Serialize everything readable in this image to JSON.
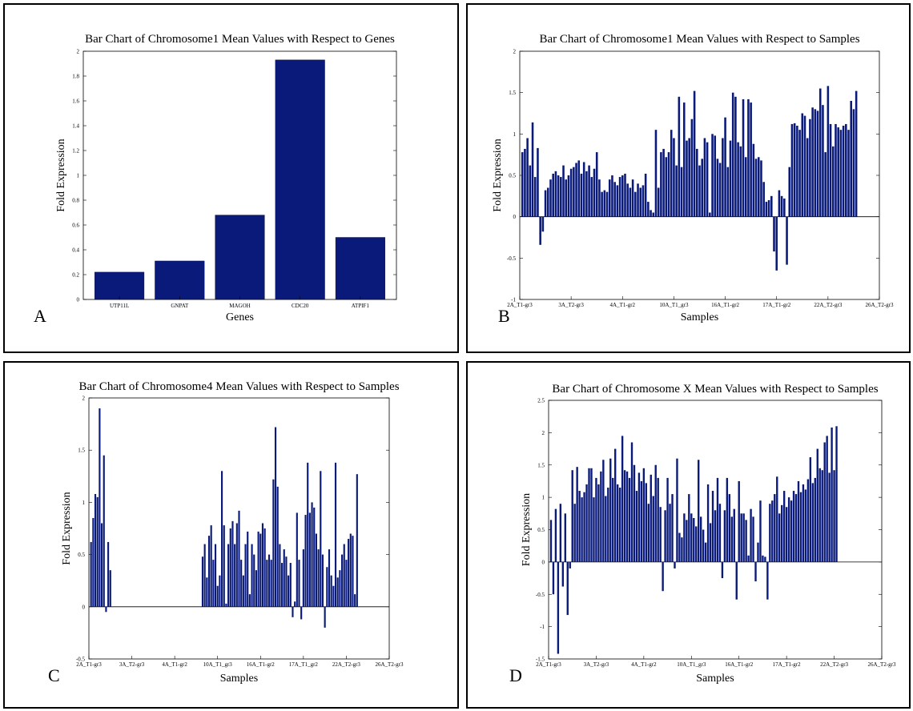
{
  "chart_data": [
    {
      "type": "bar",
      "panel_label": "A",
      "title": "Bar Chart of Chromosome1 Mean Values with Respect to Genes",
      "xlabel": "Genes",
      "ylabel": "Fold Expression",
      "ylim": [
        0,
        2
      ],
      "yticks": [
        "0",
        "0.2",
        "0.4",
        "0.6",
        "0.8",
        "1",
        "1.2",
        "1.4",
        "1.6",
        "1.8",
        "2"
      ],
      "categories": [
        "UTP11L",
        "GNPAT",
        "MAGOH",
        "CDC20",
        "ATPIF1"
      ],
      "values": [
        0.22,
        0.31,
        0.68,
        1.93,
        0.5
      ],
      "color": "#0a1a7a"
    },
    {
      "type": "bar",
      "panel_label": "B",
      "title": "Bar Chart of Chromosome1 Mean Values with Respect to Samples",
      "xlabel": "Samples",
      "ylabel": "Fold Expression",
      "ylim": [
        -1,
        2
      ],
      "yticks": [
        "-1",
        "-0.5",
        "0",
        "0.5",
        "1",
        "1.5",
        "2"
      ],
      "xticks": [
        "2A_T1-gr3",
        "3A_T2-gr3",
        "4A_T1-gr2",
        "10A_T1_gr3",
        "16A_T1-gr2",
        "17A_T1-gr2",
        "22A_T2-gr3",
        "26A_T2-gr3"
      ],
      "values": [
        0.78,
        0.82,
        0.95,
        0.62,
        1.14,
        0.48,
        0.83,
        -0.34,
        -0.18,
        0.32,
        0.35,
        0.45,
        0.52,
        0.55,
        0.5,
        0.48,
        0.62,
        0.45,
        0.5,
        0.58,
        0.6,
        0.65,
        0.68,
        0.52,
        0.66,
        0.55,
        0.62,
        0.48,
        0.58,
        0.78,
        0.45,
        0.3,
        0.32,
        0.3,
        0.45,
        0.5,
        0.42,
        0.38,
        0.48,
        0.5,
        0.52,
        0.4,
        0.35,
        0.45,
        0.3,
        0.4,
        0.35,
        0.38,
        0.52,
        0.18,
        0.08,
        0.05,
        1.05,
        0.35,
        0.78,
        0.82,
        0.72,
        0.78,
        1.05,
        0.95,
        0.62,
        1.45,
        0.6,
        1.38,
        0.92,
        0.95,
        1.18,
        1.52,
        0.82,
        0.62,
        0.7,
        0.95,
        0.9,
        0.05,
        1.0,
        0.98,
        0.7,
        0.65,
        0.95,
        1.2,
        0.6,
        0.92,
        1.5,
        1.45,
        0.9,
        0.85,
        1.42,
        0.72,
        1.42,
        1.38,
        0.88,
        0.7,
        0.72,
        0.68,
        0.42,
        0.18,
        0.2,
        0.25,
        -0.42,
        -0.65,
        0.32,
        0.25,
        0.22,
        -0.58,
        0.6,
        1.12,
        1.13,
        1.1,
        1.05,
        1.25,
        1.22,
        0.95,
        1.18,
        1.32,
        1.3,
        1.28,
        1.55,
        1.35,
        0.78,
        1.58,
        1.12,
        0.85,
        1.12,
        1.08,
        1.05,
        1.1,
        1.12,
        1.05,
        1.4,
        1.3,
        1.52
      ]
    },
    {
      "type": "bar",
      "panel_label": "C",
      "title": "Bar Chart of Chromosome4 Mean Values with Respect to Samples",
      "xlabel": "Samples",
      "ylabel": "Fold Expression",
      "ylim": [
        -0.5,
        2
      ],
      "yticks": [
        "-0.5",
        "0",
        "0.5",
        "1",
        "1.5",
        "2"
      ],
      "xticks": [
        "2A_T1-gr3",
        "3A_T2-gr3",
        "4A_T1-gr2",
        "10A_T1_gr3",
        "16A_T1-gr2",
        "17A_T1_gr2",
        "22A_T2-gr3",
        "26A_T2-gr3"
      ],
      "values": [
        0.62,
        0.85,
        1.08,
        1.05,
        1.9,
        0.8,
        1.45,
        -0.05,
        0.62,
        0.35,
        0,
        0,
        0,
        0,
        0,
        0,
        0,
        0,
        0,
        0,
        0,
        0,
        0,
        0,
        0,
        0,
        0,
        0,
        0,
        0,
        0,
        0,
        0,
        0,
        0,
        0,
        0,
        0,
        0,
        0,
        0,
        0,
        0,
        0,
        0,
        0,
        0,
        0,
        0,
        0,
        0,
        0,
        0.48,
        0.6,
        0.28,
        0.68,
        0.78,
        0.45,
        0.6,
        0.2,
        0.3,
        1.3,
        0.78,
        0.03,
        0.6,
        0.75,
        0.82,
        0.6,
        0.8,
        0.92,
        0.45,
        0.3,
        0.6,
        0.72,
        0.12,
        0.6,
        0.5,
        0.35,
        0.72,
        0.7,
        0.8,
        0.75,
        0.45,
        0.5,
        0.45,
        1.22,
        1.72,
        1.15,
        0.6,
        0.42,
        0.55,
        0.48,
        0.3,
        0.42,
        -0.1,
        0.05,
        0.9,
        0.45,
        -0.12,
        0.55,
        0.88,
        1.38,
        0.9,
        1.0,
        0.95,
        0.7,
        0.55,
        1.3,
        0.5,
        -0.2,
        0.38,
        0.55,
        0.3,
        0.2,
        1.38,
        0.28,
        0.35,
        0.5,
        0.6,
        0.45,
        0.65,
        0.7,
        0.68,
        0.12,
        1.27
      ]
    },
    {
      "type": "bar",
      "panel_label": "D",
      "title": "Bar Chart of Chromosome X Mean Values with Respect to Samples",
      "xlabel": "Samples",
      "ylabel": "Fold Expression",
      "ylim": [
        -1.5,
        2.5
      ],
      "yticks": [
        "-1.5",
        "-1",
        "-0.5",
        "0",
        "0.5",
        "1",
        "1.5",
        "2",
        "2.5"
      ],
      "xticks": [
        "2A_T1-gr3",
        "3A_T2-gr3",
        "4A_T1-gr2",
        "10A_T1_gr3",
        "16A_T1-gr2",
        "17A_T1-gr2",
        "22A_T2-gr3",
        "26A_T2-gr3"
      ],
      "values": [
        0.65,
        -0.5,
        0.82,
        -1.42,
        0.9,
        -0.38,
        0.75,
        -0.82,
        -0.1,
        1.42,
        0.9,
        1.47,
        1.1,
        1.0,
        1.08,
        1.2,
        1.45,
        1.45,
        1.0,
        1.3,
        1.2,
        1.4,
        1.58,
        1.02,
        1.15,
        1.6,
        1.3,
        1.75,
        1.2,
        1.15,
        1.95,
        1.42,
        1.4,
        1.3,
        1.85,
        1.5,
        1.1,
        1.38,
        1.25,
        1.45,
        1.22,
        0.9,
        1.35,
        1.02,
        1.5,
        1.3,
        0.85,
        -0.45,
        0.8,
        1.3,
        0.9,
        1.05,
        -0.1,
        1.6,
        0.45,
        0.38,
        0.75,
        0.65,
        1.05,
        0.75,
        0.68,
        0.55,
        1.58,
        0.7,
        0.5,
        0.3,
        1.2,
        0.6,
        1.1,
        0.8,
        1.3,
        0.9,
        -0.25,
        0.8,
        1.3,
        1.05,
        0.7,
        0.82,
        -0.58,
        1.25,
        0.75,
        0.75,
        0.65,
        0.1,
        0.82,
        0.7,
        -0.3,
        0.3,
        0.95,
        0.1,
        0.08,
        -0.58,
        0.9,
        0.95,
        1.05,
        1.32,
        0.75,
        0.88,
        1.1,
        0.85,
        1.0,
        0.95,
        1.1,
        1.05,
        1.25,
        1.08,
        1.2,
        1.12,
        1.28,
        1.62,
        1.22,
        1.3,
        1.75,
        1.45,
        1.42,
        1.85,
        1.95,
        1.38,
        2.08,
        1.42,
        2.1
      ]
    }
  ]
}
